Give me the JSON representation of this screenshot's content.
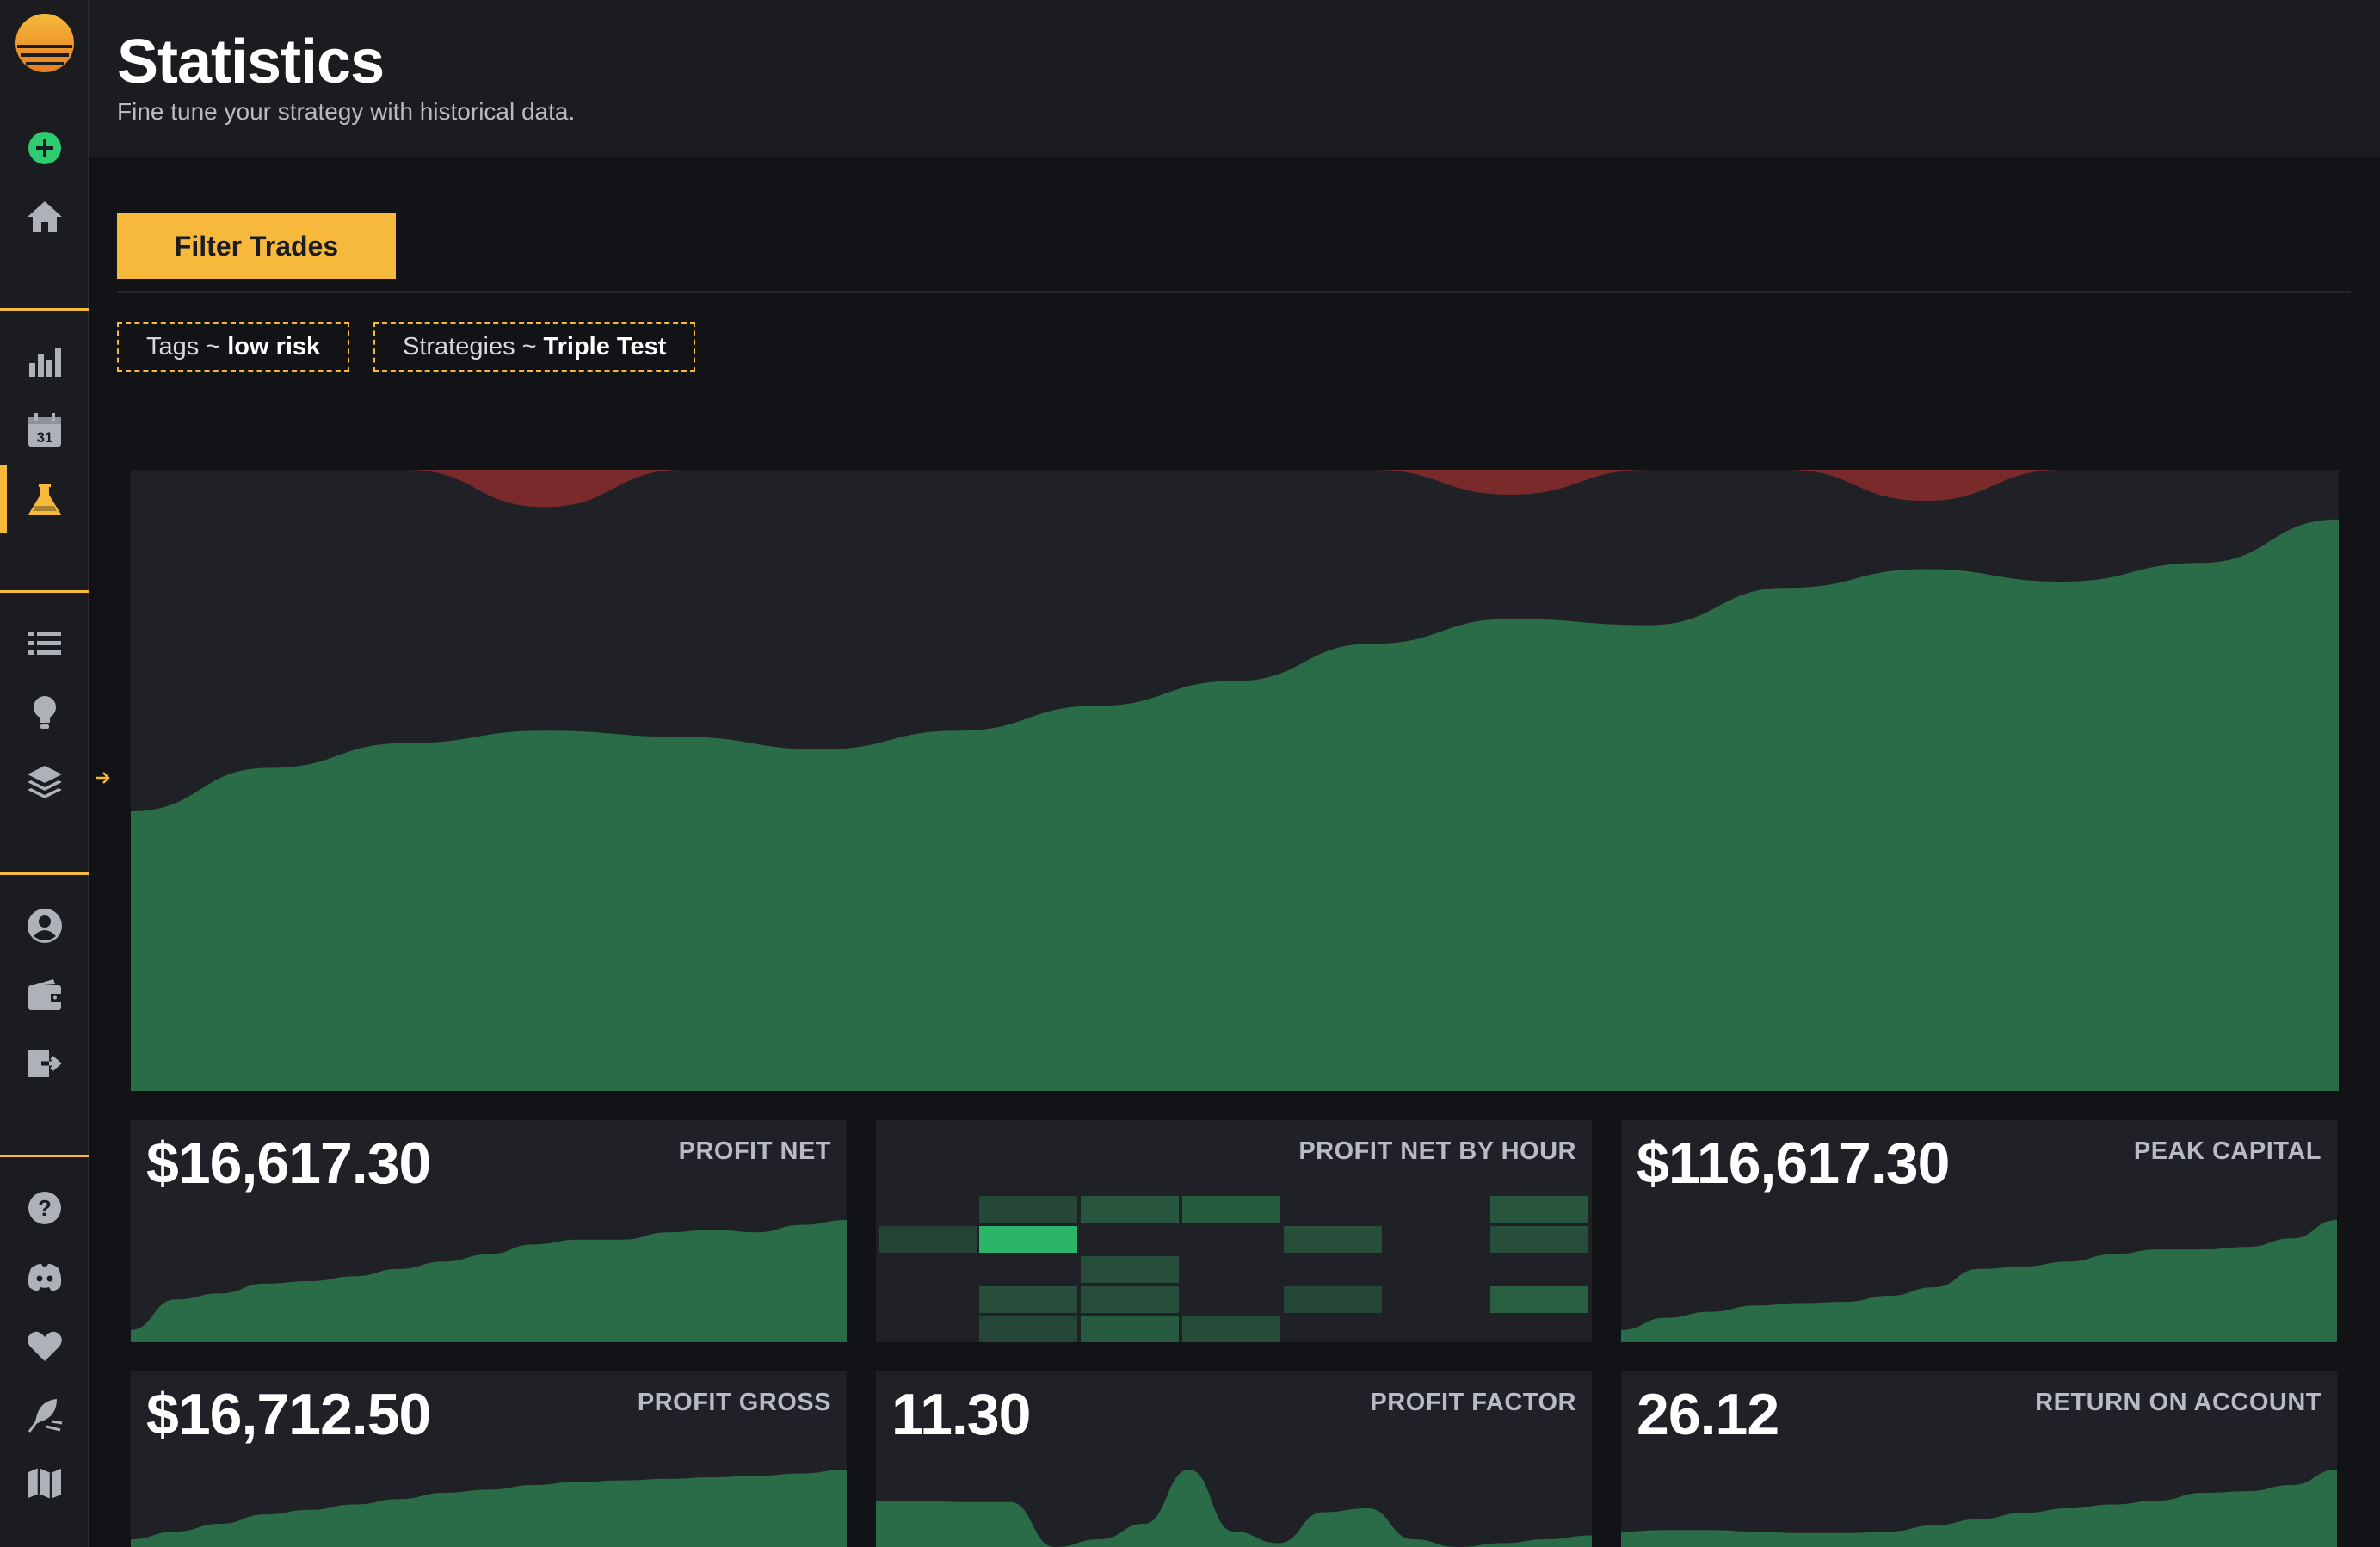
{
  "header": {
    "title": "Statistics",
    "subtitle": "Fine tune your strategy with historical data."
  },
  "filter": {
    "button_label": "Filter Trades",
    "chips": [
      {
        "key": "Tags",
        "sep": "~",
        "value": "low risk"
      },
      {
        "key": "Strategies",
        "sep": "~",
        "value": "Triple Test"
      }
    ]
  },
  "sidebar": {
    "icons": [
      "add-icon",
      "home-icon",
      "bar-chart-icon",
      "calendar-icon",
      "flask-icon",
      "list-icon",
      "lightbulb-icon",
      "layers-icon",
      "user-icon",
      "wallet-icon",
      "logout-icon",
      "help-icon",
      "discord-icon",
      "heart-icon",
      "feather-icon",
      "map-icon"
    ],
    "calendar_day": "31",
    "active": "flask-icon"
  },
  "colors": {
    "accent": "#f6b93b",
    "positive": "#2a6b48",
    "negative": "#7a2a2a",
    "bright_green": "#2ab56a",
    "add_green": "#2ecc71"
  },
  "chart_data": {
    "type": "area",
    "grid": false,
    "series": [
      {
        "values": [
          0.45,
          0.52,
          0.56,
          0.58,
          0.57,
          0.55,
          0.58,
          0.62,
          0.66,
          0.72,
          0.76,
          0.75,
          0.81,
          0.84,
          0.82,
          0.85,
          0.92
        ]
      },
      {
        "values": [
          0,
          0,
          0,
          0.06,
          0,
          0,
          0,
          0,
          0,
          0,
          0.04,
          0,
          0,
          0.05,
          0,
          0,
          0
        ]
      }
    ]
  },
  "cards": [
    {
      "value": "$16,617.30",
      "label": "PROFIT NET",
      "spark": [
        0.1,
        0.35,
        0.4,
        0.48,
        0.5,
        0.54,
        0.6,
        0.66,
        0.72,
        0.8,
        0.84,
        0.84,
        0.9,
        0.92,
        0.9,
        0.96,
        1.0
      ]
    },
    {
      "value": "",
      "label": "PROFIT NET BY HOUR"
    },
    {
      "value": "$116,617.30",
      "label": "PEAK CAPITAL",
      "spark": [
        0.1,
        0.2,
        0.25,
        0.3,
        0.32,
        0.33,
        0.38,
        0.45,
        0.6,
        0.62,
        0.66,
        0.72,
        0.76,
        0.76,
        0.78,
        0.85,
        1.0
      ]
    },
    {
      "value": "$16,712.50",
      "label": "PROFIT GROSS",
      "spark": [
        0.1,
        0.2,
        0.3,
        0.42,
        0.48,
        0.55,
        0.62,
        0.7,
        0.74,
        0.8,
        0.84,
        0.86,
        0.88,
        0.9,
        0.92,
        0.95,
        1.0
      ]
    },
    {
      "value": "11.30",
      "label": "PROFIT FACTOR",
      "spark": [
        0.6,
        0.6,
        0.58,
        0.58,
        0.0,
        0.1,
        0.3,
        1.0,
        0.2,
        0.05,
        0.45,
        0.5,
        0.1,
        0.0,
        0.05,
        0.1,
        0.15
      ]
    },
    {
      "value": "26.12",
      "label": "RETURN ON ACCOUNT",
      "spark": [
        0.2,
        0.22,
        0.22,
        0.2,
        0.18,
        0.18,
        0.2,
        0.28,
        0.36,
        0.44,
        0.5,
        0.55,
        0.6,
        0.7,
        0.72,
        0.8,
        1.0
      ]
    }
  ],
  "heatmap": {
    "cells": [
      [
        0,
        1,
        0.25
      ],
      [
        0,
        2,
        0.45
      ],
      [
        0,
        3,
        0.55
      ],
      [
        0,
        4,
        0
      ],
      [
        0,
        5,
        0.45
      ],
      [
        1,
        0,
        0.2
      ],
      [
        1,
        1,
        1.0
      ],
      [
        1,
        2,
        0
      ],
      [
        1,
        3,
        0
      ],
      [
        1,
        4,
        0.35
      ],
      [
        1,
        5,
        0.35
      ],
      [
        2,
        2,
        0.35
      ],
      [
        3,
        1,
        0.35
      ],
      [
        3,
        2,
        0.35
      ],
      [
        3,
        4,
        0.25
      ],
      [
        3,
        5,
        0.6
      ],
      [
        4,
        1,
        0.25
      ],
      [
        4,
        2,
        0.55
      ],
      [
        4,
        3,
        0.3
      ]
    ]
  }
}
